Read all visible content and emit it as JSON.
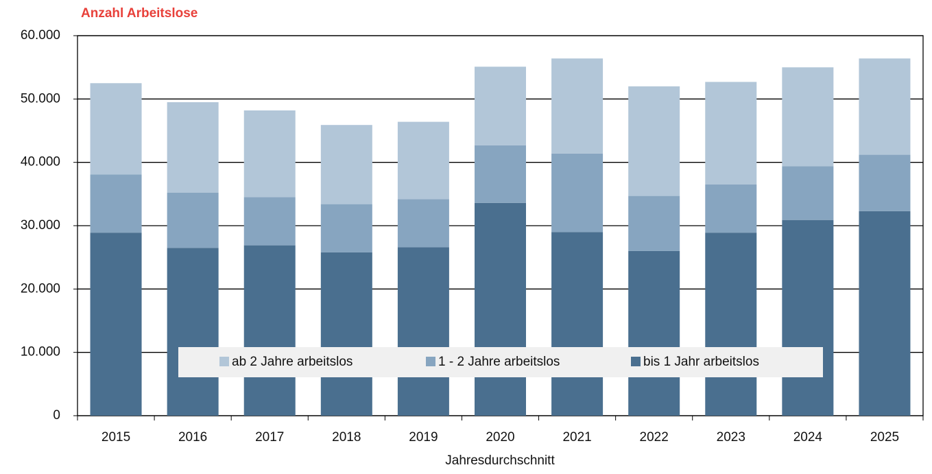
{
  "chart_data": {
    "type": "bar",
    "stacked": true,
    "title": "Anzahl Arbeitslose",
    "x_label": "Jahresdurchschnitt",
    "categories": [
      "2015",
      "2016",
      "2017",
      "2018",
      "2019",
      "2020",
      "2021",
      "2022",
      "2023",
      "2024",
      "2025"
    ],
    "series": [
      {
        "name": "bis 1 Jahr arbeitslos",
        "color": "#4a6f8f",
        "values": [
          28900,
          26500,
          26900,
          25800,
          26600,
          33600,
          29000,
          26000,
          28900,
          30900,
          32300
        ]
      },
      {
        "name": "1 - 2 Jahre arbeitslos",
        "color": "#87a5c0",
        "values": [
          9200,
          8700,
          7600,
          7600,
          7600,
          9100,
          12400,
          8700,
          7600,
          8500,
          8900
        ]
      },
      {
        "name": "ab 2 Jahre arbeitslos",
        "color": "#b2c6d8",
        "values": [
          14400,
          14300,
          13700,
          12500,
          12200,
          12400,
          15000,
          17300,
          16200,
          15600,
          15200
        ]
      }
    ],
    "ylim": [
      0,
      60000
    ],
    "yticks": [
      0,
      {
        "value": 10000,
        "label": "10.000"
      },
      {
        "value": 20000,
        "label": "20.000"
      },
      {
        "value": 30000,
        "label": "30.000"
      },
      {
        "value": 40000,
        "label": "40.000"
      },
      {
        "value": 50000,
        "label": "50.000"
      },
      {
        "value": 60000,
        "label": "60.000"
      }
    ],
    "grid": true,
    "legend": "bottom"
  }
}
